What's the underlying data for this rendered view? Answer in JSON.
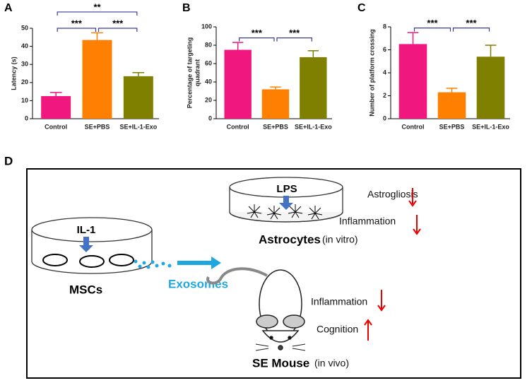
{
  "chart_data": [
    {
      "type": "bar",
      "panel": "A",
      "ylabel": [
        "Latency (s)"
      ],
      "categories": [
        "Control",
        "SE+PBS",
        "SE+IL-1-Exo"
      ],
      "values": [
        12.5,
        43.5,
        23.5
      ],
      "errors": [
        2,
        4,
        2
      ],
      "colors": [
        "#f0177f",
        "#ff7f00",
        "#7f7f00"
      ],
      "ylim": [
        0,
        50
      ],
      "yticks": [
        0,
        10,
        20,
        30,
        40,
        50
      ],
      "annotations": [
        {
          "label": "***",
          "between": [
            "Control",
            "SE+PBS"
          ]
        },
        {
          "label": "***",
          "between": [
            "SE+PBS",
            "SE+IL-1-Exo"
          ]
        },
        {
          "label": "**",
          "between": [
            "Control",
            "SE+IL-1-Exo"
          ]
        }
      ]
    },
    {
      "type": "bar",
      "panel": "B",
      "ylabel": [
        "Percentage of targeting",
        "quadrant"
      ],
      "categories": [
        "Control",
        "SE+PBS",
        "SE+IL-1-Exo"
      ],
      "values": [
        75,
        32,
        67
      ],
      "errors": [
        8,
        2.5,
        7
      ],
      "colors": [
        "#f0177f",
        "#ff7f00",
        "#7f7f00"
      ],
      "ylim": [
        0,
        100
      ],
      "yticks": [
        0,
        20,
        40,
        60,
        80,
        100
      ],
      "annotations": [
        {
          "label": "***",
          "between": [
            "Control",
            "SE+PBS"
          ]
        },
        {
          "label": "***",
          "between": [
            "SE+PBS",
            "SE+IL-1-Exo"
          ]
        }
      ]
    },
    {
      "type": "bar",
      "panel": "C",
      "ylabel": [
        "Number of platform crossing"
      ],
      "categories": [
        "Control",
        "SE+PBS",
        "SE+IL-1-Exo"
      ],
      "values": [
        6.5,
        2.3,
        5.4
      ],
      "errors": [
        1,
        0.35,
        1
      ],
      "colors": [
        "#f0177f",
        "#ff7f00",
        "#7f7f00"
      ],
      "ylim": [
        0,
        8
      ],
      "yticks": [
        0,
        2,
        4,
        6,
        8
      ],
      "annotations": [
        {
          "label": "***",
          "between": [
            "Control",
            "SE+PBS"
          ]
        },
        {
          "label": "***",
          "between": [
            "SE+PBS",
            "SE+IL-1-Exo"
          ]
        }
      ]
    }
  ],
  "diagram": {
    "panel": "D",
    "lps": "LPS",
    "astrogliosis": "Astrogliosis",
    "inflammation_vitro": "Inflammation",
    "astrocytes": "Astrocytes",
    "in_vitro": "(in vitro)",
    "il1": "IL-1",
    "mscs": "MSCs",
    "exosomes": "Exosomes",
    "inflammation_vivo": "Inflammation",
    "cognition": "Cognition",
    "se_mouse": "SE Mouse",
    "in_vivo": "(in vivo)"
  }
}
